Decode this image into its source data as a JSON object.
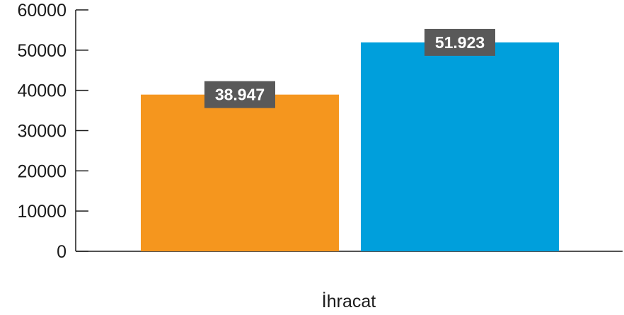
{
  "chart_data": {
    "type": "bar",
    "categories": [
      "İhracat"
    ],
    "series": [
      {
        "values": [
          38947
        ],
        "color": "#F5961E",
        "label": "38.947"
      },
      {
        "values": [
          51923
        ],
        "color": "#009FDC",
        "label": "51.923"
      }
    ],
    "ylim": [
      0,
      60000
    ],
    "yticks": [
      0,
      10000,
      20000,
      30000,
      40000,
      50000,
      60000
    ],
    "ytick_labels": [
      "0",
      "10000",
      "20000",
      "30000",
      "40000",
      "50000",
      "60000"
    ],
    "grid": false,
    "legend": "none",
    "label_box_color": "#595959"
  }
}
